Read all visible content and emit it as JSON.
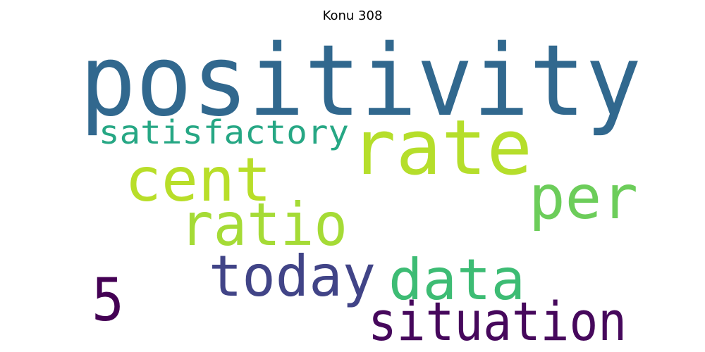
{
  "title": "Konu 308",
  "words": [
    {
      "text": "positivity",
      "color": "#31688e"
    },
    {
      "text": "rate",
      "color": "#b5de2b"
    },
    {
      "text": "satisfactory",
      "color": "#26a784"
    },
    {
      "text": "cent",
      "color": "#b8de29"
    },
    {
      "text": "per",
      "color": "#6ccd5a"
    },
    {
      "text": "ratio",
      "color": "#a5db36"
    },
    {
      "text": "today",
      "color": "#414487"
    },
    {
      "text": "data",
      "color": "#3dbc74"
    },
    {
      "text": "5",
      "color": "#440154"
    },
    {
      "text": "situation",
      "color": "#46085c"
    }
  ]
}
